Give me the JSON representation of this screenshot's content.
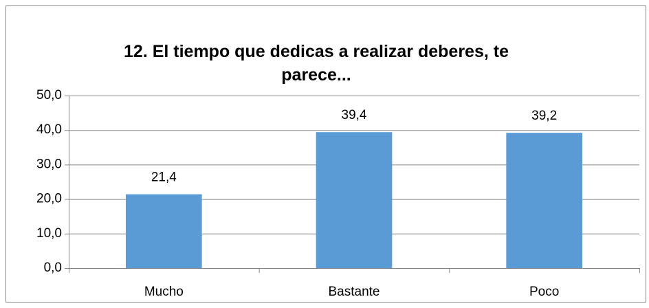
{
  "chart_data": {
    "type": "bar",
    "title": "12. El tiempo que dedicas a realizar deberes, te parece...",
    "categories": [
      "Mucho",
      "Bastante",
      "Poco"
    ],
    "values": [
      21.4,
      39.4,
      39.2
    ],
    "value_labels": [
      "21,4",
      "39,4",
      "39,2"
    ],
    "color": "#5b9bd5",
    "ylim": [
      0,
      50
    ],
    "yticks": [
      {
        "value": 0,
        "label": "0,0"
      },
      {
        "value": 10,
        "label": "10,0"
      },
      {
        "value": 20,
        "label": "20,0"
      },
      {
        "value": 30,
        "label": "30,0"
      },
      {
        "value": 40,
        "label": "40,0"
      },
      {
        "value": 50,
        "label": "50,0"
      }
    ],
    "grid": true
  }
}
